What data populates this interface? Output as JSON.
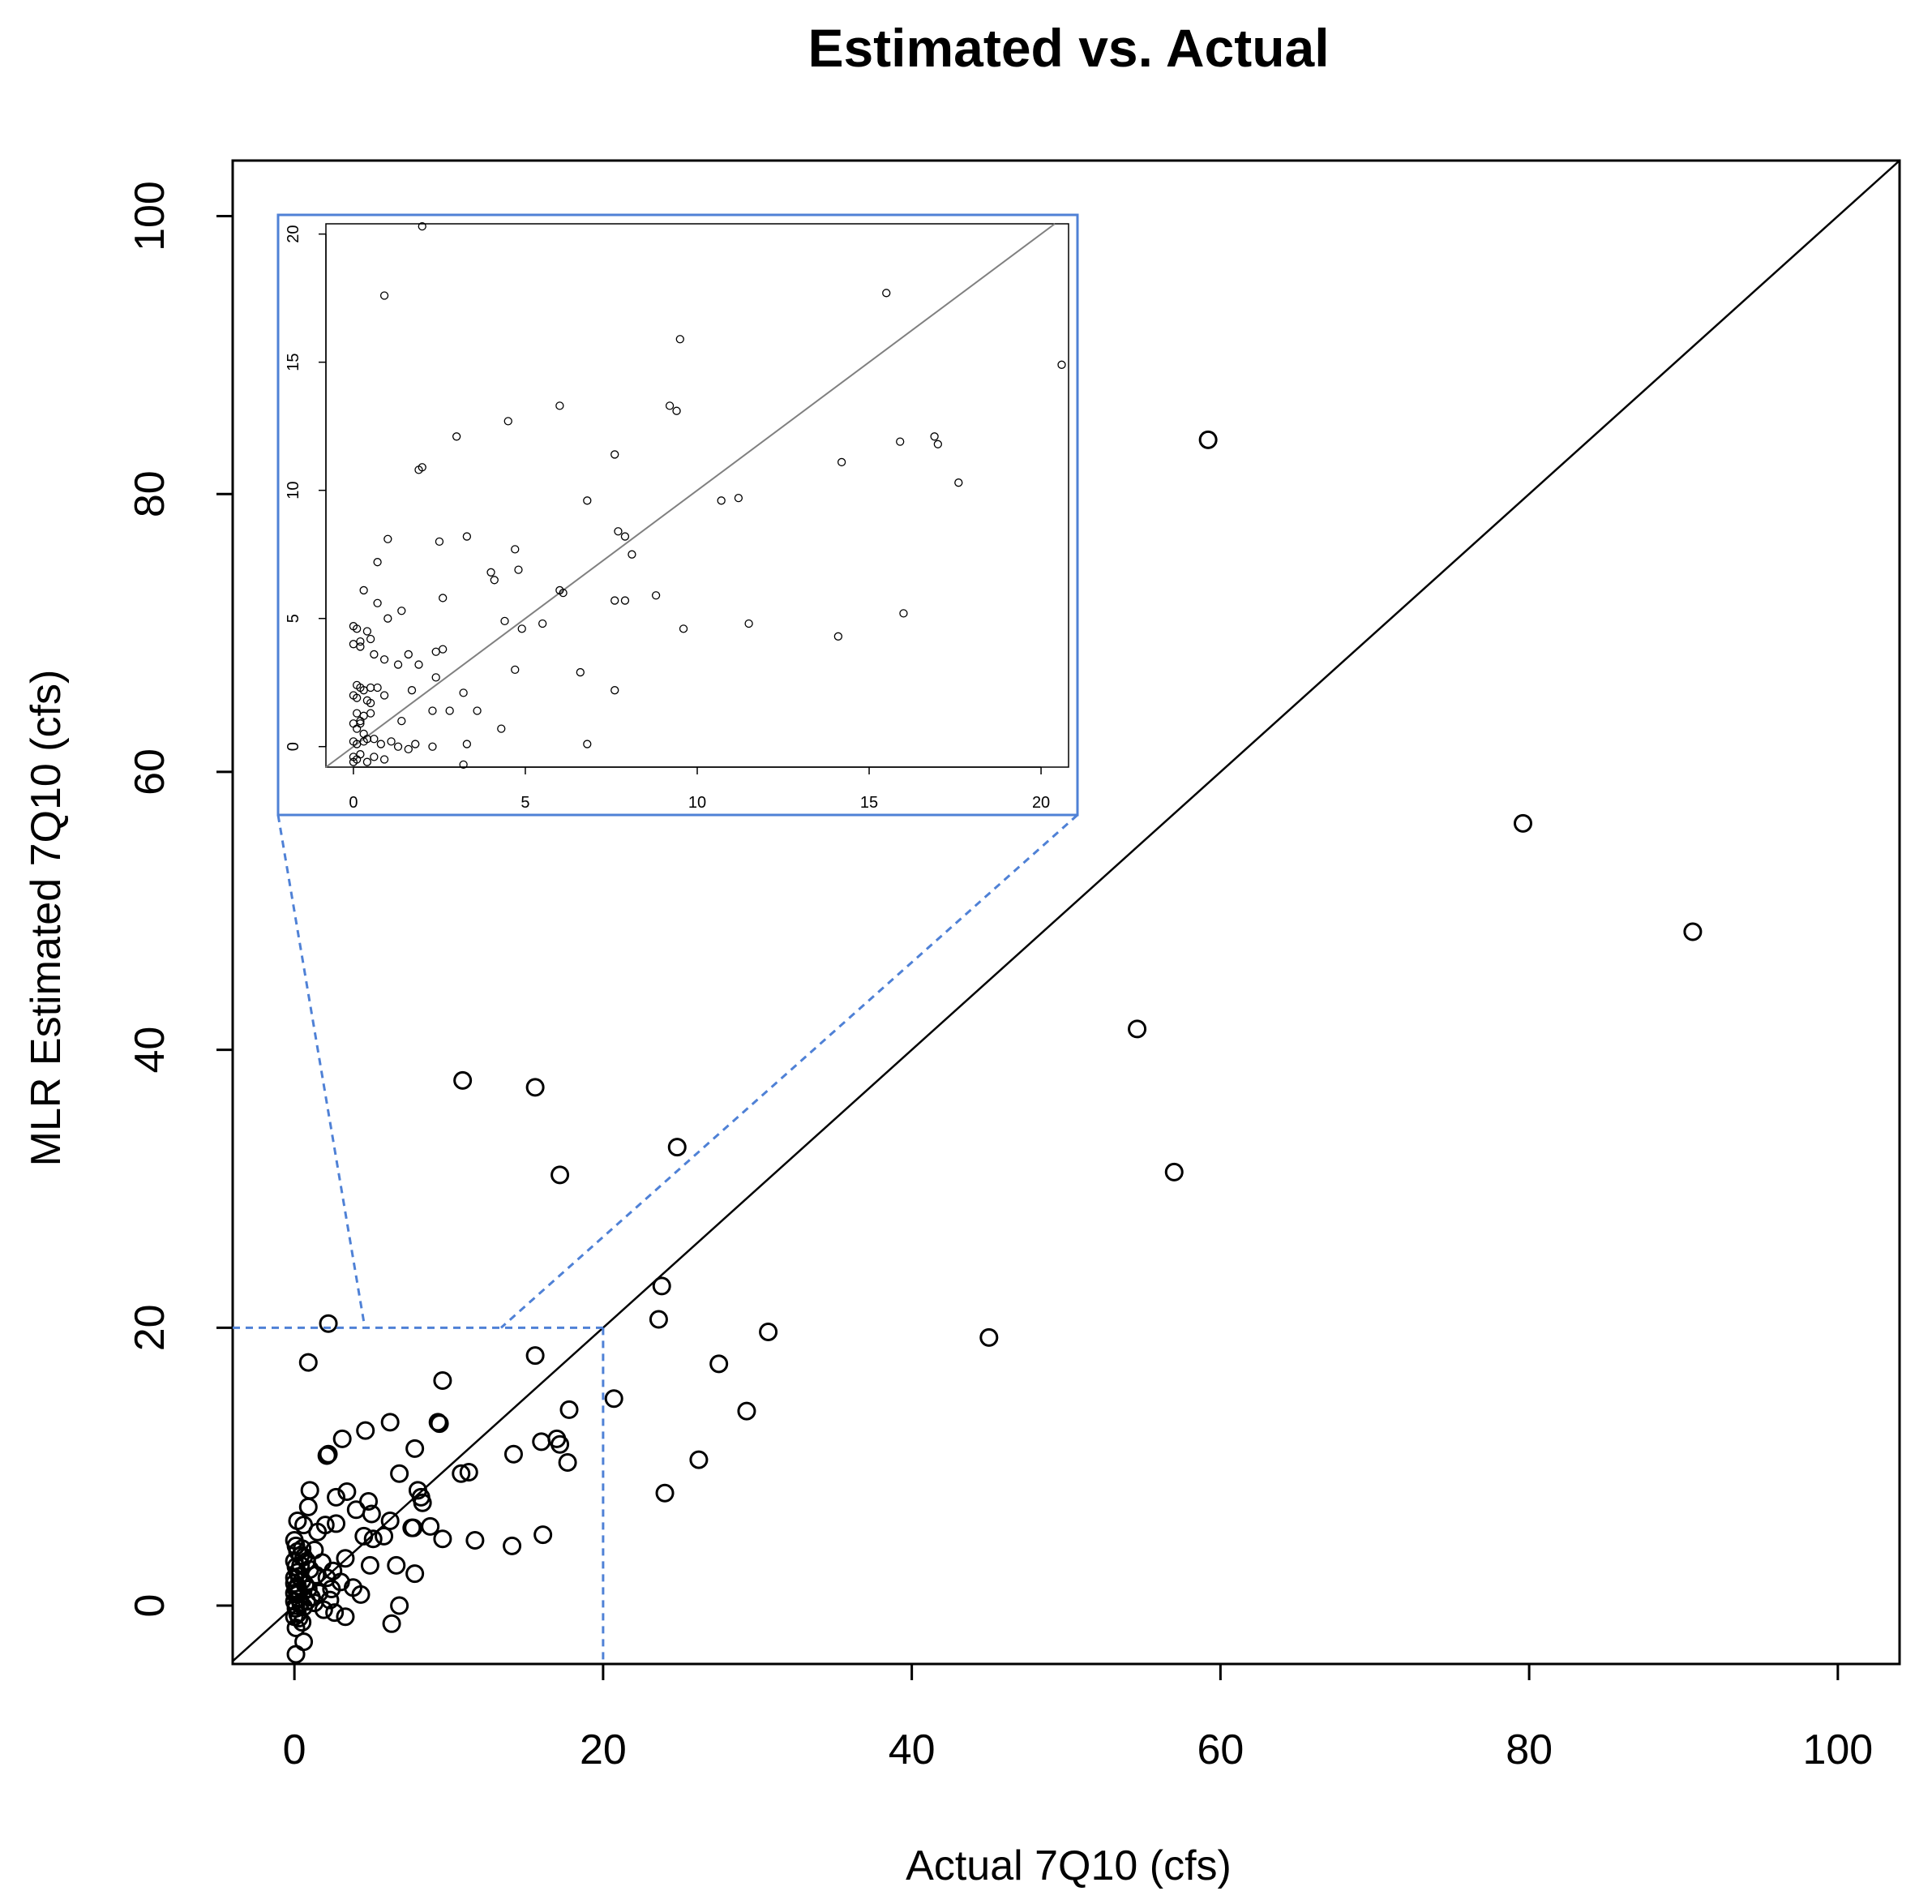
{
  "chart_data": {
    "type": "scatter",
    "title": "Estimated vs. Actual",
    "xlabel": "Actual 7Q10 (cfs)",
    "ylabel": "MLR Estimated 7Q10 (cfs)",
    "xlim": [
      -4,
      104
    ],
    "ylim": [
      -4.2,
      104
    ],
    "xticks": [
      "0",
      "20",
      "40",
      "60",
      "80",
      "100"
    ],
    "yticks": [
      "0",
      "20",
      "40",
      "60",
      "80",
      "100"
    ],
    "reference_line": "y = x",
    "zoom_region": {
      "x": [
        0,
        20
      ],
      "y": [
        0,
        20
      ]
    },
    "colors": {
      "points": "#000000",
      "zoom_box": "#4f81d6"
    },
    "points": [
      [
        59.2,
        83.9
      ],
      [
        79.6,
        56.3
      ],
      [
        90.6,
        48.5
      ],
      [
        54.6,
        41.5
      ],
      [
        57.0,
        31.2
      ],
      [
        45.0,
        19.3
      ],
      [
        10.9,
        37.8
      ],
      [
        15.6,
        37.3
      ],
      [
        17.2,
        31.0
      ],
      [
        24.8,
        33.0
      ],
      [
        23.8,
        23.0
      ],
      [
        23.6,
        20.6
      ],
      [
        27.5,
        17.4
      ],
      [
        30.7,
        19.7
      ],
      [
        29.3,
        14.0
      ],
      [
        26.2,
        10.5
      ],
      [
        24.0,
        8.1
      ],
      [
        20.7,
        14.9
      ],
      [
        2.2,
        20.3
      ],
      [
        0.9,
        17.5
      ],
      [
        15.6,
        18.0
      ],
      [
        9.6,
        16.2
      ],
      [
        17.8,
        14.1
      ],
      [
        9.3,
        13.2
      ],
      [
        9.4,
        13.1
      ],
      [
        6.2,
        13.2
      ],
      [
        4.6,
        12.6
      ],
      [
        3.1,
        12.0
      ],
      [
        2.1,
        10.8
      ],
      [
        2.2,
        10.9
      ],
      [
        7.8,
        11.3
      ],
      [
        16.0,
        11.8
      ],
      [
        17.0,
        12.0
      ],
      [
        17.2,
        11.6
      ],
      [
        17.7,
        10.3
      ],
      [
        14.2,
        10.9
      ],
      [
        6.8,
        9.5
      ],
      [
        8.0,
        8.3
      ],
      [
        8.2,
        7.8
      ],
      [
        8.3,
        7.4
      ],
      [
        10.8,
        9.5
      ],
      [
        11.3,
        9.6
      ],
      [
        11.7,
        4.7
      ],
      [
        14.1,
        4.3
      ],
      [
        16.1,
        5.1
      ],
      [
        9.6,
        4.8
      ],
      [
        8.8,
        5.7
      ],
      [
        7.7,
        5.6
      ],
      [
        7.6,
        5.6
      ],
      [
        6.2,
        6.1
      ],
      [
        6.6,
        2.9
      ],
      [
        7.8,
        2.3
      ],
      [
        6.8,
        0.0
      ],
      [
        6.3,
        -1.3
      ],
      [
        4.3,
        0.8
      ],
      [
        3.3,
        -0.8
      ],
      [
        0.1,
        -3.5
      ],
      [
        0.6,
        -2.6
      ],
      [
        1.0,
        8.3
      ],
      [
        1.5,
        5.3
      ],
      [
        2.7,
        7.8
      ],
      [
        3.4,
        8.2
      ],
      [
        4.0,
        6.9
      ],
      [
        4.8,
        7.5
      ],
      [
        5.0,
        6.6
      ],
      [
        4.5,
        5.0
      ],
      [
        5.1,
        4.8
      ],
      [
        5.8,
        5.0
      ],
      [
        4.9,
        2.9
      ],
      [
        3.3,
        3.4
      ],
      [
        2.7,
        5.9
      ],
      [
        2.0,
        5.8
      ],
      [
        2.5,
        2.5
      ],
      [
        3.0,
        1.7
      ],
      [
        3.8,
        1.3
      ],
      [
        0.2,
        6.1
      ],
      [
        0.6,
        5.8
      ],
      [
        0.9,
        7.1
      ],
      [
        1.3,
        4.0
      ],
      [
        1.8,
        3.1
      ],
      [
        2.1,
        2.0
      ],
      [
        2.4,
        1.2
      ],
      [
        0.0,
        4.7
      ],
      [
        0.1,
        4.3
      ],
      [
        0.2,
        3.9
      ],
      [
        0.4,
        3.6
      ],
      [
        0.5,
        4.1
      ],
      [
        0.8,
        3.2
      ],
      [
        1.0,
        2.6
      ],
      [
        0.0,
        3.2
      ],
      [
        0.1,
        2.8
      ],
      [
        0.2,
        2.4
      ],
      [
        0.3,
        2.1
      ],
      [
        0.5,
        1.8
      ],
      [
        0.7,
        1.5
      ],
      [
        0.9,
        1.2
      ],
      [
        0.0,
        1.6
      ],
      [
        0.1,
        1.2
      ],
      [
        0.2,
        0.8
      ],
      [
        0.3,
        0.5
      ],
      [
        0.4,
        0.2
      ],
      [
        0.6,
        -0.1
      ],
      [
        1.1,
        0.6
      ],
      [
        0.0,
        0.3
      ],
      [
        0.1,
        -0.2
      ],
      [
        0.2,
        -0.6
      ],
      [
        0.3,
        -0.9
      ],
      [
        0.5,
        -1.2
      ],
      [
        0.0,
        -0.8
      ],
      [
        0.1,
        -1.6
      ],
      [
        1.3,
        0.2
      ],
      [
        1.6,
        0.9
      ],
      [
        1.9,
        -0.3
      ],
      [
        2.3,
        0.4
      ],
      [
        2.6,
        -0.5
      ],
      [
        0.8,
        0.3
      ],
      [
        1.4,
        2.2
      ],
      [
        0.0,
        2.0
      ],
      [
        0.2,
        1.4
      ],
      [
        0.4,
        2.9
      ],
      [
        0.6,
        3.5
      ],
      [
        0.0,
        0.9
      ],
      [
        0.1,
        0.0
      ],
      [
        0.3,
        1.0
      ]
    ],
    "inset": {
      "xlim": [
        -0.8,
        20.8
      ],
      "ylim": [
        -0.8,
        20.4
      ],
      "xticks": [
        "0",
        "5",
        "10",
        "15",
        "20"
      ],
      "yticks": [
        "0",
        "5",
        "10",
        "15",
        "20"
      ],
      "points": [
        [
          2.0,
          20.3
        ],
        [
          0.9,
          17.6
        ],
        [
          15.5,
          17.7
        ],
        [
          9.5,
          15.9
        ],
        [
          20.6,
          14.9
        ],
        [
          6.0,
          13.3
        ],
        [
          9.2,
          13.3
        ],
        [
          9.4,
          13.1
        ],
        [
          4.5,
          12.7
        ],
        [
          3.0,
          12.1
        ],
        [
          15.9,
          11.9
        ],
        [
          16.9,
          12.1
        ],
        [
          17.0,
          11.8
        ],
        [
          7.6,
          11.4
        ],
        [
          17.6,
          10.3
        ],
        [
          14.2,
          11.1
        ],
        [
          1.9,
          10.8
        ],
        [
          2.0,
          10.9
        ],
        [
          6.8,
          9.6
        ],
        [
          10.7,
          9.6
        ],
        [
          11.2,
          9.7
        ],
        [
          7.7,
          8.4
        ],
        [
          7.9,
          8.2
        ],
        [
          8.1,
          7.5
        ],
        [
          1.0,
          8.1
        ],
        [
          2.5,
          8.0
        ],
        [
          3.3,
          8.2
        ],
        [
          4.7,
          7.7
        ],
        [
          0.7,
          7.2
        ],
        [
          4.0,
          6.8
        ],
        [
          4.8,
          6.9
        ],
        [
          4.1,
          6.5
        ],
        [
          6.0,
          6.1
        ],
        [
          6.1,
          6.0
        ],
        [
          2.6,
          5.8
        ],
        [
          1.4,
          5.3
        ],
        [
          0.7,
          5.6
        ],
        [
          0.3,
          6.1
        ],
        [
          1.0,
          5.0
        ],
        [
          0.0,
          4.7
        ],
        [
          0.1,
          4.6
        ],
        [
          0.4,
          4.5
        ],
        [
          0.2,
          4.1
        ],
        [
          0.5,
          4.2
        ],
        [
          0.0,
          4.0
        ],
        [
          0.2,
          3.9
        ],
        [
          4.4,
          4.9
        ],
        [
          4.9,
          4.6
        ],
        [
          5.5,
          4.8
        ],
        [
          7.6,
          5.7
        ],
        [
          7.9,
          5.7
        ],
        [
          8.8,
          5.9
        ],
        [
          9.6,
          4.6
        ],
        [
          11.5,
          4.8
        ],
        [
          14.1,
          4.3
        ],
        [
          16.0,
          5.2
        ],
        [
          0.6,
          3.6
        ],
        [
          0.9,
          3.4
        ],
        [
          1.3,
          3.2
        ],
        [
          1.6,
          3.6
        ],
        [
          1.9,
          3.2
        ],
        [
          2.4,
          3.7
        ],
        [
          2.6,
          3.8
        ],
        [
          2.4,
          2.7
        ],
        [
          4.7,
          3.0
        ],
        [
          6.6,
          2.9
        ],
        [
          3.2,
          2.1
        ],
        [
          1.7,
          2.2
        ],
        [
          0.1,
          2.4
        ],
        [
          0.2,
          2.3
        ],
        [
          0.3,
          2.2
        ],
        [
          0.5,
          2.3
        ],
        [
          0.7,
          2.3
        ],
        [
          0.0,
          2.0
        ],
        [
          0.1,
          1.9
        ],
        [
          0.4,
          1.8
        ],
        [
          0.5,
          1.7
        ],
        [
          0.9,
          2.0
        ],
        [
          2.3,
          1.4
        ],
        [
          2.8,
          1.4
        ],
        [
          3.6,
          1.4
        ],
        [
          7.6,
          2.2
        ],
        [
          0.1,
          1.3
        ],
        [
          0.2,
          1.0
        ],
        [
          0.3,
          1.2
        ],
        [
          0.5,
          1.3
        ],
        [
          0.0,
          0.9
        ],
        [
          0.1,
          0.7
        ],
        [
          0.2,
          0.9
        ],
        [
          0.3,
          0.5
        ],
        [
          0.4,
          0.3
        ],
        [
          1.4,
          1.0
        ],
        [
          4.3,
          0.7
        ],
        [
          0.0,
          0.2
        ],
        [
          0.1,
          0.1
        ],
        [
          0.3,
          0.2
        ],
        [
          0.6,
          0.3
        ],
        [
          0.8,
          0.1
        ],
        [
          1.1,
          0.2
        ],
        [
          1.3,
          0.0
        ],
        [
          1.6,
          -0.1
        ],
        [
          1.8,
          0.1
        ],
        [
          2.3,
          0.0
        ],
        [
          3.3,
          0.1
        ],
        [
          6.8,
          0.1
        ],
        [
          0.0,
          -0.4
        ],
        [
          0.1,
          -0.5
        ],
        [
          0.2,
          -0.3
        ],
        [
          0.4,
          -0.6
        ],
        [
          0.6,
          -0.4
        ],
        [
          0.9,
          -0.5
        ],
        [
          3.2,
          -0.7
        ],
        [
          0.0,
          -0.6
        ]
      ]
    }
  }
}
